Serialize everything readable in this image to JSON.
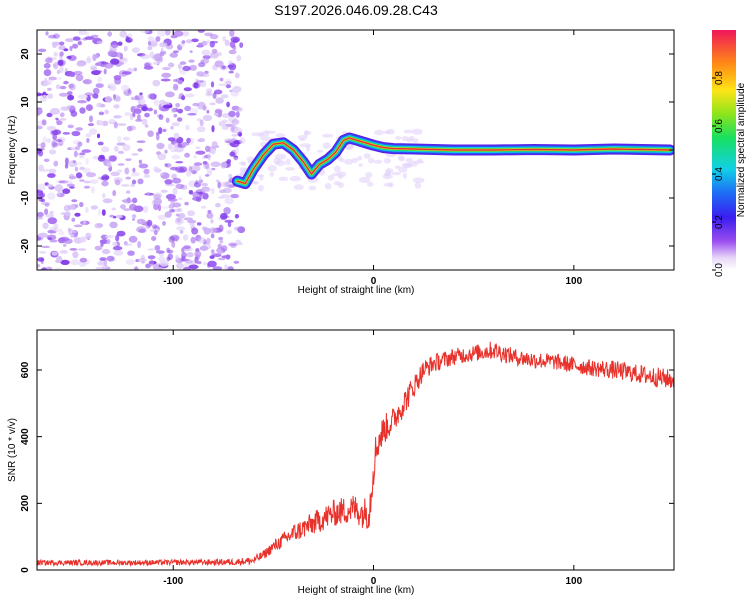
{
  "page_title": "S197.2026.046.09.28.C43",
  "colors": {
    "snr_line": "#e8312b",
    "axis": "#000000",
    "ridge_core": "#e0303a",
    "noise": "#8a2be2"
  },
  "chart_data": [
    {
      "type": "heatmap",
      "title": "S197.2026.046.09.28.C43",
      "xlabel": "Height of straight line (km)",
      "ylabel": "Frequency (Hz)",
      "xlim": [
        -168,
        150
      ],
      "ylim": [
        -25,
        25
      ],
      "x_ticks": [
        -100,
        0,
        100
      ],
      "y_ticks": [
        -20,
        -10,
        0,
        10,
        20
      ],
      "colorbar": {
        "label": "Normalized spectral amplitude",
        "range": [
          0.0,
          1.0
        ],
        "ticks": [
          0.0,
          0.2,
          0.4,
          0.6,
          0.8
        ]
      },
      "noise_region_x": [
        -168,
        -66
      ],
      "ridge": {
        "x": [
          -68,
          -64,
          -60,
          -55,
          -50,
          -45,
          -40,
          -35,
          -31,
          -27,
          -23,
          -19,
          -15,
          -12,
          -8,
          -4,
          0,
          5,
          10,
          20,
          40,
          60,
          80,
          100,
          120,
          148
        ],
        "freq": [
          -6.5,
          -7.0,
          -4.0,
          -1.0,
          1.2,
          1.5,
          0.0,
          -2.5,
          -5.0,
          -3.0,
          -2.0,
          -0.5,
          2.0,
          2.5,
          2.0,
          1.5,
          1.0,
          0.5,
          0.3,
          0.2,
          0.0,
          0.0,
          0.1,
          0.0,
          0.2,
          0.0
        ]
      }
    },
    {
      "type": "line",
      "title": "",
      "xlabel": "Height of straight line (km)",
      "ylabel": "SNR (10 * v/v)",
      "xlim": [
        -168,
        150
      ],
      "ylim": [
        0,
        720
      ],
      "x_ticks": [
        -100,
        0,
        100
      ],
      "y_ticks": [
        0,
        200,
        400,
        600
      ],
      "series": [
        {
          "name": "SNR",
          "x": [
            -168,
            -120,
            -90,
            -70,
            -60,
            -55,
            -50,
            -40,
            -30,
            -20,
            -10,
            -5,
            -2,
            0,
            2,
            5,
            10,
            15,
            20,
            25,
            30,
            40,
            50,
            60,
            70,
            80,
            90,
            100,
            110,
            120,
            130,
            140,
            150
          ],
          "y": [
            22,
            22,
            23,
            24,
            28,
            45,
            70,
            110,
            140,
            170,
            185,
            170,
            180,
            320,
            380,
            420,
            450,
            500,
            550,
            600,
            620,
            640,
            650,
            660,
            640,
            630,
            625,
            615,
            605,
            600,
            590,
            580,
            570
          ],
          "jitter": [
            8,
            8,
            8,
            10,
            12,
            14,
            18,
            28,
            35,
            40,
            45,
            45,
            60,
            70,
            50,
            45,
            40,
            40,
            35,
            30,
            28,
            25,
            25,
            28,
            25,
            25,
            25,
            25,
            25,
            28,
            28,
            30,
            30
          ]
        }
      ]
    }
  ]
}
